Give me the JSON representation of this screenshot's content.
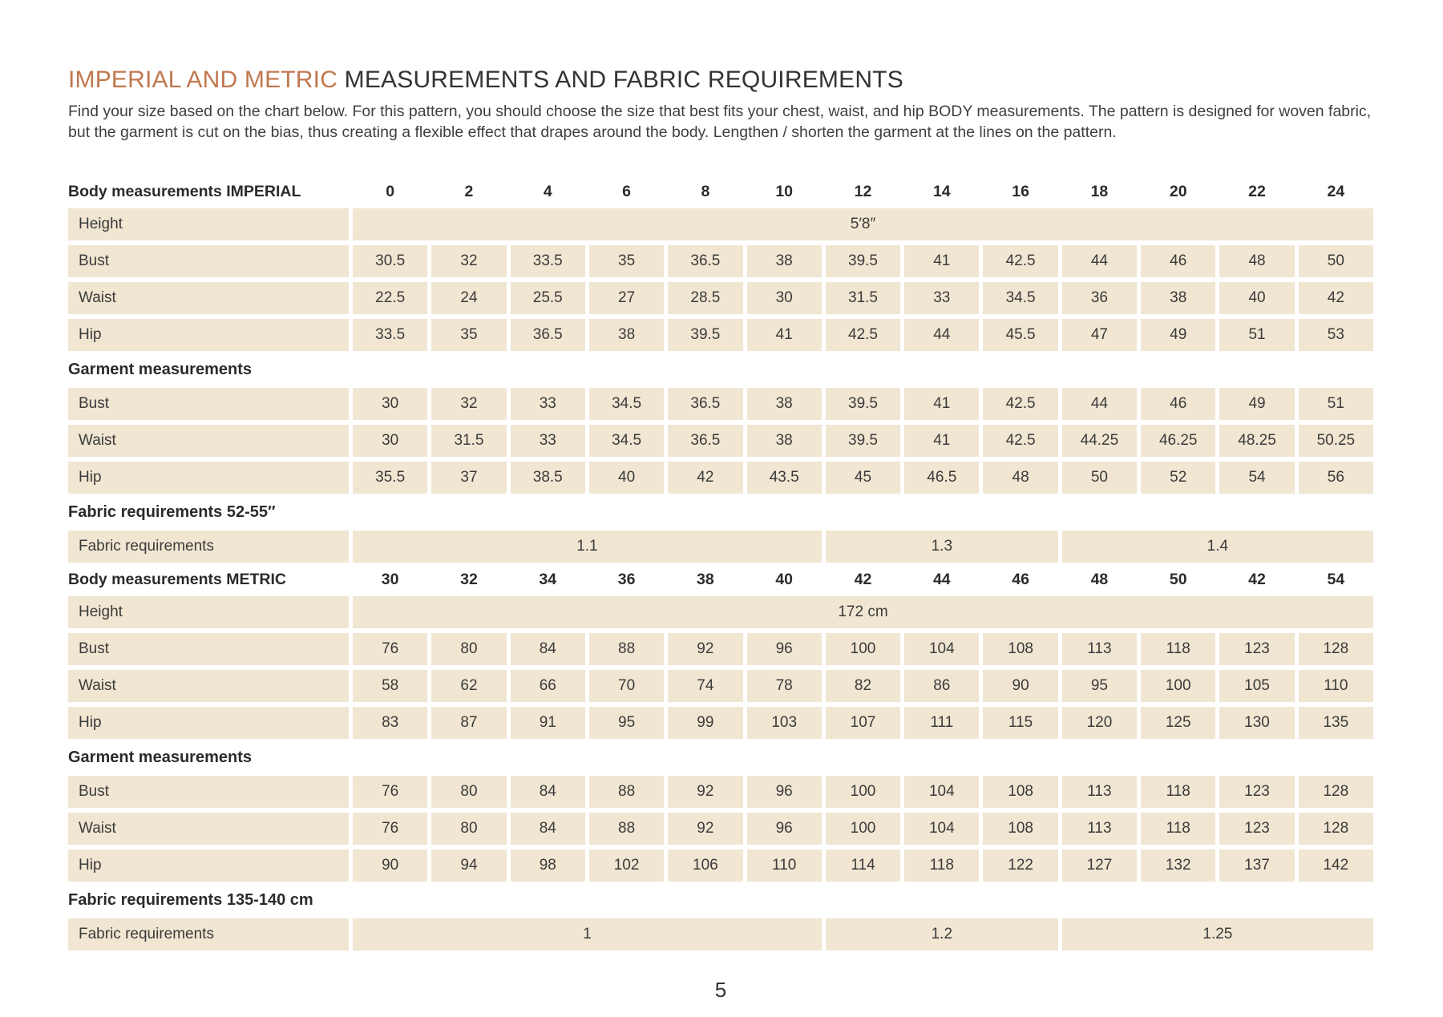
{
  "title": {
    "accent": "IMPERIAL AND METRIC",
    "rest": "MEASUREMENTS AND FABRIC REQUIREMENTS"
  },
  "intro": "Find your size based on the chart below. For this pattern, you should choose the size that best fits your chest, waist, and hip BODY measurements. The pattern is designed for woven fabric, but the garment is cut on the bias, thus creating a flexible effect that drapes around the body. Lengthen / shorten the garment at the lines on the pattern.",
  "colors": {
    "accent": "#c0784f",
    "cell_background": "#f0e6d2",
    "text": "#3a3a3a"
  },
  "table": {
    "rows": [
      {
        "kind": "header",
        "label": "Body measurements IMPERIAL",
        "values": [
          "0",
          "2",
          "4",
          "6",
          "8",
          "10",
          "12",
          "14",
          "16",
          "18",
          "20",
          "22",
          "24"
        ]
      },
      {
        "kind": "fullspan",
        "label": "Height",
        "value": "5′8″"
      },
      {
        "kind": "data",
        "label": "Bust",
        "values": [
          "30.5",
          "32",
          "33.5",
          "35",
          "36.5",
          "38",
          "39.5",
          "41",
          "42.5",
          "44",
          "46",
          "48",
          "50"
        ]
      },
      {
        "kind": "data",
        "label": "Waist",
        "values": [
          "22.5",
          "24",
          "25.5",
          "27",
          "28.5",
          "30",
          "31.5",
          "33",
          "34.5",
          "36",
          "38",
          "40",
          "42"
        ]
      },
      {
        "kind": "data",
        "label": "Hip",
        "values": [
          "33.5",
          "35",
          "36.5",
          "38",
          "39.5",
          "41",
          "42.5",
          "44",
          "45.5",
          "47",
          "49",
          "51",
          "53"
        ]
      },
      {
        "kind": "section",
        "label": "Garment measurements"
      },
      {
        "kind": "data",
        "label": "Bust",
        "values": [
          "30",
          "32",
          "33",
          "34.5",
          "36.5",
          "38",
          "39.5",
          "41",
          "42.5",
          "44",
          "46",
          "49",
          "51"
        ]
      },
      {
        "kind": "data",
        "label": "Waist",
        "values": [
          "30",
          "31.5",
          "33",
          "34.5",
          "36.5",
          "38",
          "39.5",
          "41",
          "42.5",
          "44.25",
          "46.25",
          "48.25",
          "50.25"
        ]
      },
      {
        "kind": "data",
        "label": "Hip",
        "values": [
          "35.5",
          "37",
          "38.5",
          "40",
          "42",
          "43.5",
          "45",
          "46.5",
          "48",
          "50",
          "52",
          "54",
          "56"
        ]
      },
      {
        "kind": "section",
        "label": "Fabric requirements 52-55″"
      },
      {
        "kind": "spans",
        "label": "Fabric requirements",
        "spans": [
          {
            "value": "1.1",
            "cols": 6
          },
          {
            "value": "1.3",
            "cols": 3
          },
          {
            "value": "1.4",
            "cols": 4
          }
        ]
      },
      {
        "kind": "header",
        "label": "Body measurements METRIC",
        "values": [
          "30",
          "32",
          "34",
          "36",
          "38",
          "40",
          "42",
          "44",
          "46",
          "48",
          "50",
          "42",
          "54"
        ]
      },
      {
        "kind": "fullspan",
        "label": "Height",
        "value": "172 cm"
      },
      {
        "kind": "data",
        "label": "Bust",
        "values": [
          "76",
          "80",
          "84",
          "88",
          "92",
          "96",
          "100",
          "104",
          "108",
          "113",
          "118",
          "123",
          "128"
        ]
      },
      {
        "kind": "data",
        "label": "Waist",
        "values": [
          "58",
          "62",
          "66",
          "70",
          "74",
          "78",
          "82",
          "86",
          "90",
          "95",
          "100",
          "105",
          "110"
        ]
      },
      {
        "kind": "data",
        "label": "Hip",
        "values": [
          "83",
          "87",
          "91",
          "95",
          "99",
          "103",
          "107",
          "111",
          "115",
          "120",
          "125",
          "130",
          "135"
        ]
      },
      {
        "kind": "section",
        "label": "Garment measurements"
      },
      {
        "kind": "data",
        "label": "Bust",
        "values": [
          "76",
          "80",
          "84",
          "88",
          "92",
          "96",
          "100",
          "104",
          "108",
          "113",
          "118",
          "123",
          "128"
        ]
      },
      {
        "kind": "data",
        "label": "Waist",
        "values": [
          "76",
          "80",
          "84",
          "88",
          "92",
          "96",
          "100",
          "104",
          "108",
          "113",
          "118",
          "123",
          "128"
        ]
      },
      {
        "kind": "data",
        "label": "Hip",
        "values": [
          "90",
          "94",
          "98",
          "102",
          "106",
          "110",
          "114",
          "118",
          "122",
          "127",
          "132",
          "137",
          "142"
        ]
      },
      {
        "kind": "section",
        "label": "Fabric requirements 135-140 cm"
      },
      {
        "kind": "spans",
        "label": "Fabric requirements",
        "spans": [
          {
            "value": "1",
            "cols": 6
          },
          {
            "value": "1.2",
            "cols": 3
          },
          {
            "value": "1.25",
            "cols": 4
          }
        ]
      }
    ]
  },
  "page": {
    "number": "5"
  }
}
